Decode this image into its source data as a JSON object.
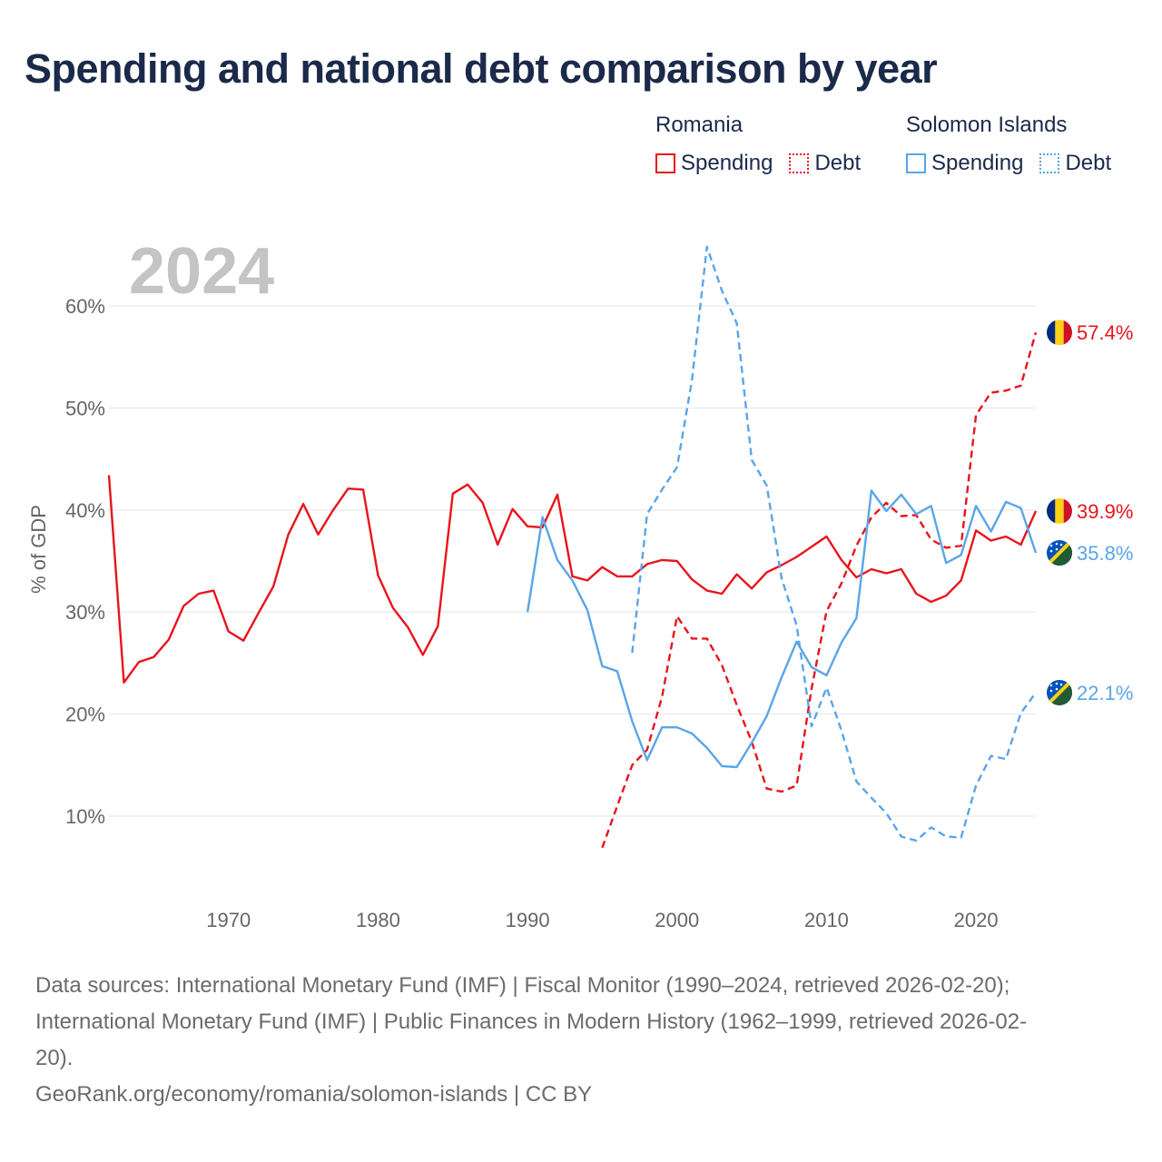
{
  "title": "Spending and national debt comparison by year",
  "year_label": "2024",
  "legend": {
    "groups": [
      {
        "name": "Romania",
        "items": [
          {
            "label": "Spending",
            "style": "solid",
            "color": "#e8141c"
          },
          {
            "label": "Debt",
            "style": "dotted",
            "color": "#e8141c"
          }
        ]
      },
      {
        "name": "Solomon Islands",
        "items": [
          {
            "label": "Spending",
            "style": "solid",
            "color": "#5aa5e8"
          },
          {
            "label": "Debt",
            "style": "dotted",
            "color": "#5aa5e8"
          }
        ]
      }
    ]
  },
  "source": {
    "line1": "Data sources: International Monetary Fund (IMF) | Fiscal Monitor (1990–2024, retrieved 2026-02-20);",
    "line2": "International Monetary Fund (IMF) | Public Finances in Modern History (1962–1999, retrieved 2026-02-",
    "line3": "20).",
    "line4": "GeoRank.org/economy/romania/solomon-islands | CC BY"
  },
  "colors": {
    "romania": "#e8141c",
    "solomon": "#5aa5e8",
    "grid": "#e6e6e6",
    "axis_text": "#666666",
    "year": "#c4c4c4"
  },
  "chart_data": {
    "type": "line",
    "title": "Spending and national debt comparison by year",
    "ylabel": "% of GDP",
    "xlabel": "",
    "xlim": [
      1962,
      2024
    ],
    "ylim": [
      4,
      66
    ],
    "x_ticks": [
      1970,
      1980,
      1990,
      2000,
      2010,
      2020
    ],
    "y_ticks": [
      10,
      20,
      30,
      40,
      50,
      60
    ],
    "y_tick_labels": [
      "10%",
      "20%",
      "30%",
      "40%",
      "50%",
      "60%"
    ],
    "series": [
      {
        "name": "Romania Spending",
        "country": "Romania",
        "kind": "spending",
        "style": "solid",
        "color": "#e8141c",
        "end_label": "39.9%",
        "flag": "romania",
        "x": [
          1962,
          1963,
          1964,
          1965,
          1966,
          1967,
          1968,
          1969,
          1970,
          1971,
          1972,
          1973,
          1974,
          1975,
          1976,
          1977,
          1978,
          1979,
          1980,
          1981,
          1982,
          1983,
          1984,
          1985,
          1986,
          1987,
          1988,
          1989,
          1990,
          1991,
          1992,
          1993,
          1994,
          1995,
          1996,
          1997,
          1998,
          1999,
          2000,
          2001,
          2002,
          2003,
          2004,
          2005,
          2006,
          2007,
          2008,
          2009,
          2010,
          2011,
          2012,
          2013,
          2014,
          2015,
          2016,
          2017,
          2018,
          2019,
          2020,
          2021,
          2022,
          2023,
          2024
        ],
        "values": [
          43.4,
          23.1,
          25.1,
          25.6,
          27.3,
          30.6,
          31.8,
          32.1,
          28.1,
          27.2,
          29.9,
          32.5,
          37.6,
          40.6,
          37.6,
          40.0,
          42.1,
          42.0,
          33.6,
          30.4,
          28.5,
          25.8,
          28.6,
          41.6,
          42.5,
          40.7,
          36.6,
          40.1,
          38.4,
          38.3,
          41.5,
          33.5,
          33.1,
          34.4,
          33.5,
          33.5,
          34.7,
          35.1,
          35.0,
          33.2,
          32.1,
          31.8,
          33.7,
          32.3,
          33.9,
          34.6,
          35.4,
          36.4,
          37.4,
          35.1,
          33.4,
          34.2,
          33.8,
          34.2,
          31.8,
          31.0,
          31.6,
          33.1,
          38.0,
          37.0,
          37.4,
          36.6,
          39.9
        ]
      },
      {
        "name": "Romania Debt",
        "country": "Romania",
        "kind": "debt",
        "style": "dashed",
        "color": "#e8141c",
        "end_label": "57.4%",
        "flag": "romania",
        "x": [
          1995,
          1996,
          1997,
          1998,
          1999,
          2000,
          2001,
          2002,
          2003,
          2004,
          2005,
          2006,
          2007,
          2008,
          2009,
          2010,
          2011,
          2012,
          2013,
          2014,
          2015,
          2016,
          2017,
          2018,
          2019,
          2020,
          2021,
          2022,
          2023,
          2024
        ],
        "values": [
          6.9,
          11.0,
          15.0,
          16.5,
          21.7,
          29.6,
          27.4,
          27.4,
          24.8,
          20.9,
          17.3,
          12.7,
          12.4,
          13.0,
          22.5,
          30.1,
          32.8,
          36.5,
          39.3,
          40.7,
          39.4,
          39.5,
          37.1,
          36.3,
          36.5,
          49.3,
          51.5,
          51.7,
          52.2,
          57.4
        ]
      },
      {
        "name": "Solomon Islands Spending",
        "country": "Solomon Islands",
        "kind": "spending",
        "style": "solid",
        "color": "#5aa5e8",
        "end_label": "35.8%",
        "flag": "solomon",
        "x": [
          1990,
          1991,
          1992,
          1993,
          1994,
          1995,
          1996,
          1997,
          1998,
          1999,
          2000,
          2001,
          2002,
          2003,
          2004,
          2005,
          2006,
          2007,
          2008,
          2009,
          2010,
          2011,
          2012,
          2013,
          2014,
          2015,
          2016,
          2017,
          2018,
          2019,
          2020,
          2021,
          2022,
          2023,
          2024
        ],
        "values": [
          30.0,
          39.3,
          35.1,
          33.1,
          30.2,
          24.7,
          24.2,
          19.3,
          15.5,
          18.7,
          18.7,
          18.1,
          16.7,
          14.9,
          14.8,
          17.2,
          19.8,
          23.6,
          27.1,
          24.6,
          23.8,
          27.0,
          29.4,
          41.9,
          39.9,
          41.5,
          39.6,
          40.4,
          34.8,
          35.6,
          40.4,
          37.9,
          40.8,
          40.2,
          35.8
        ]
      },
      {
        "name": "Solomon Islands Debt",
        "country": "Solomon Islands",
        "kind": "debt",
        "style": "dashed",
        "color": "#5aa5e8",
        "end_label": "22.1%",
        "flag": "solomon",
        "x": [
          1997,
          1998,
          1999,
          2000,
          2001,
          2002,
          2003,
          2004,
          2005,
          2006,
          2007,
          2008,
          2009,
          2010,
          2011,
          2012,
          2013,
          2014,
          2015,
          2016,
          2017,
          2018,
          2019,
          2020,
          2021,
          2022,
          2023,
          2024
        ],
        "values": [
          26.0,
          39.6,
          42.0,
          44.2,
          52.7,
          65.8,
          61.5,
          58.3,
          44.9,
          42.4,
          33.3,
          28.7,
          18.8,
          22.6,
          18.4,
          13.4,
          11.8,
          10.3,
          8.0,
          7.6,
          8.9,
          8.0,
          7.9,
          13.0,
          15.9,
          15.6,
          20.1,
          22.1
        ]
      }
    ]
  }
}
